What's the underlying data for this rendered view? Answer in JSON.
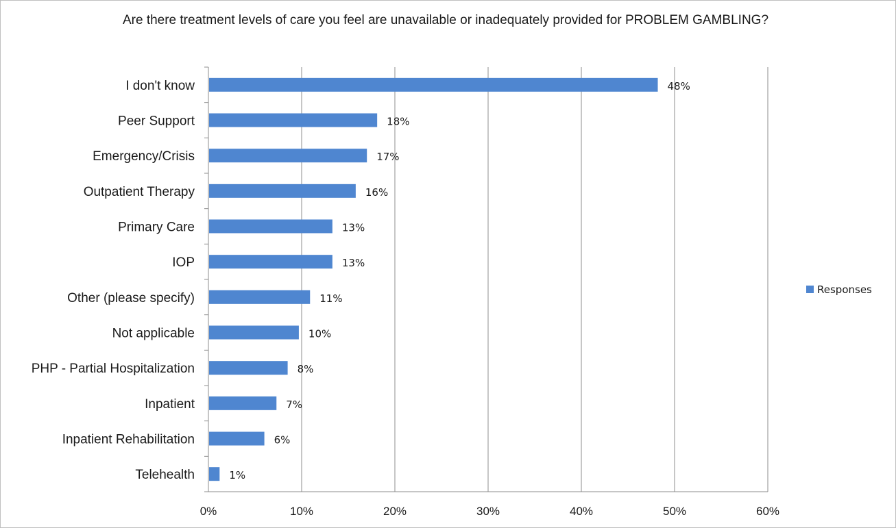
{
  "chart_data": {
    "type": "bar",
    "orientation": "horizontal",
    "title": "Are there treatment levels of care you feel are unavailable or inadequately provided  for PROBLEM GAMBLING?",
    "categories": [
      "I don't know",
      "Peer Support",
      "Emergency/Crisis",
      "Outpatient Therapy",
      "Primary Care",
      "IOP",
      "Other (please specify)",
      "Not applicable",
      "PHP - Partial Hospitalization",
      "Inpatient",
      "Inpatient Rehabilitation",
      "Telehealth"
    ],
    "series": [
      {
        "name": "Responses",
        "values": [
          48.2,
          18.1,
          17.0,
          15.8,
          13.3,
          13.3,
          10.9,
          9.7,
          8.5,
          7.3,
          6.0,
          1.2
        ],
        "labels": [
          "48%",
          "18%",
          "17%",
          "16%",
          "13%",
          "13%",
          "11%",
          "10%",
          "8%",
          "7%",
          "6%",
          "1%"
        ],
        "color": "#4f86d0"
      }
    ],
    "xlim": [
      0,
      60
    ],
    "xticks": [
      0,
      10,
      20,
      30,
      40,
      50,
      60
    ],
    "xtick_labels": [
      "0%",
      "10%",
      "20%",
      "30%",
      "40%",
      "50%",
      "60%"
    ],
    "grid": true,
    "legend_position": "right"
  }
}
